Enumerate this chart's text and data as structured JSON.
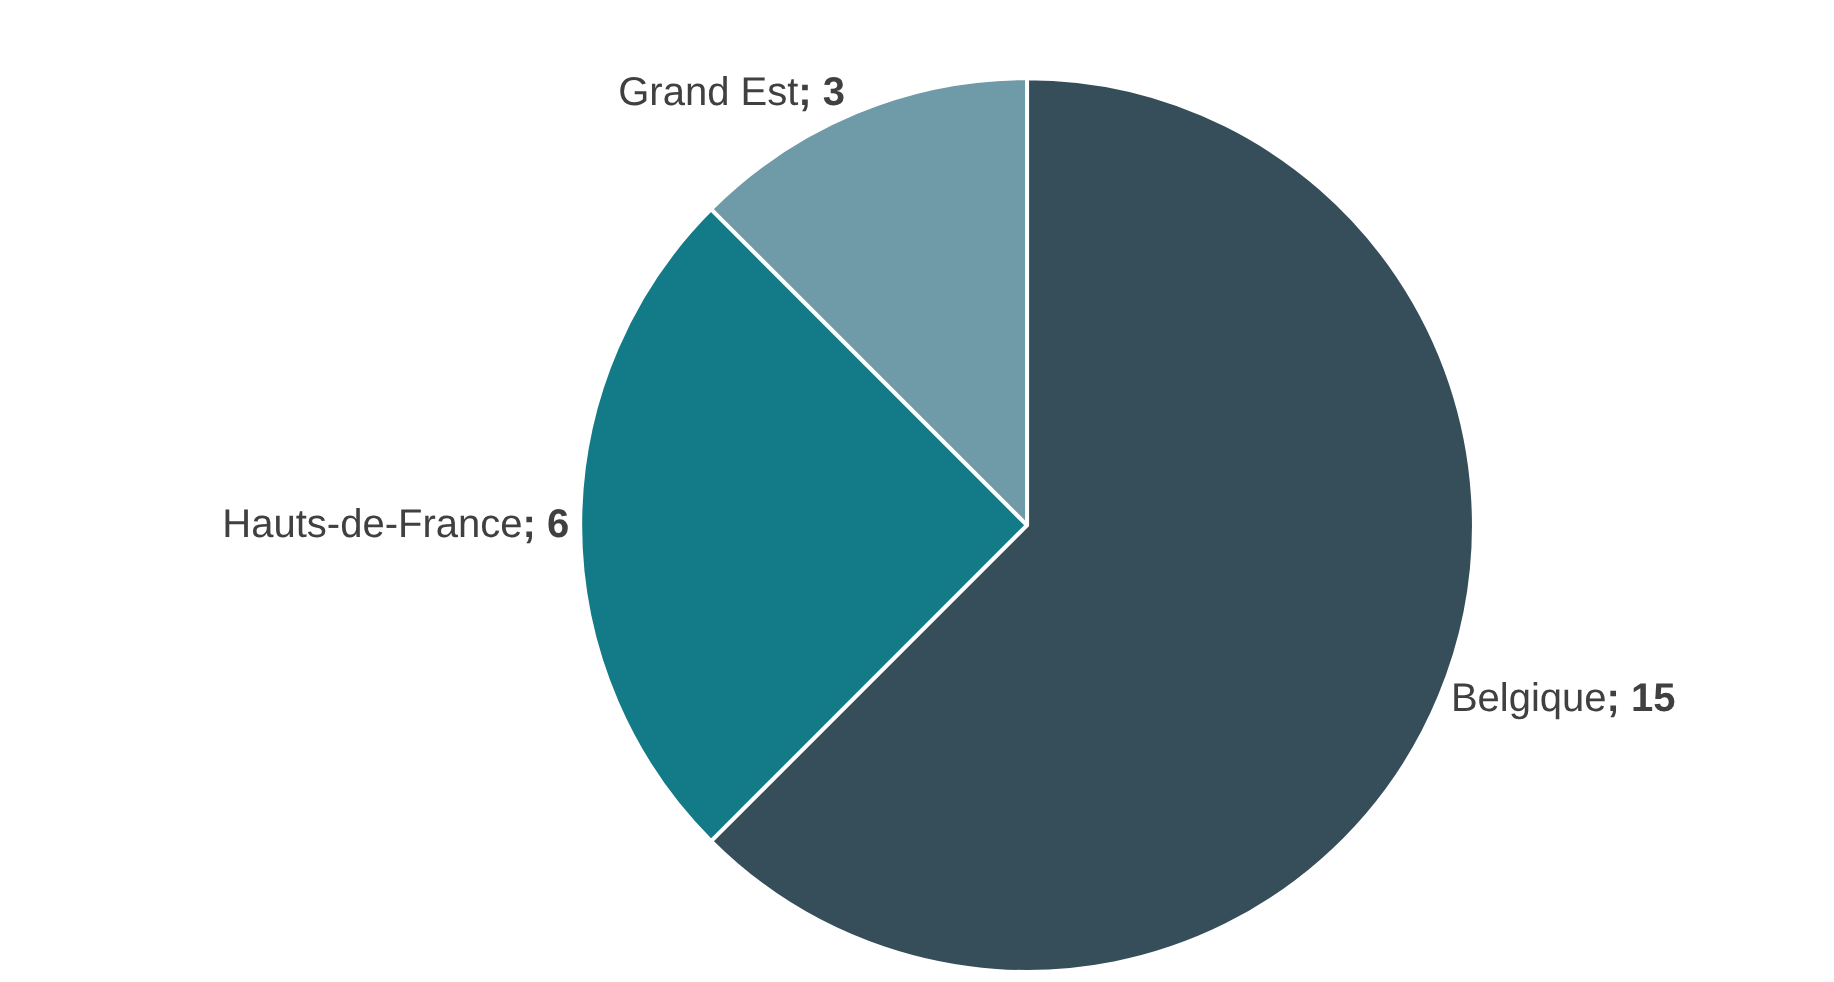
{
  "chart_data": {
    "type": "pie",
    "categories": [
      "Belgique",
      "Hauts-de-France",
      "Grand Est"
    ],
    "values": [
      15,
      6,
      3
    ],
    "colors": [
      "#364e5a",
      "#137a87",
      "#6f9ba8"
    ],
    "value_labels": [
      "; 15",
      "; 6",
      "; 3"
    ]
  }
}
